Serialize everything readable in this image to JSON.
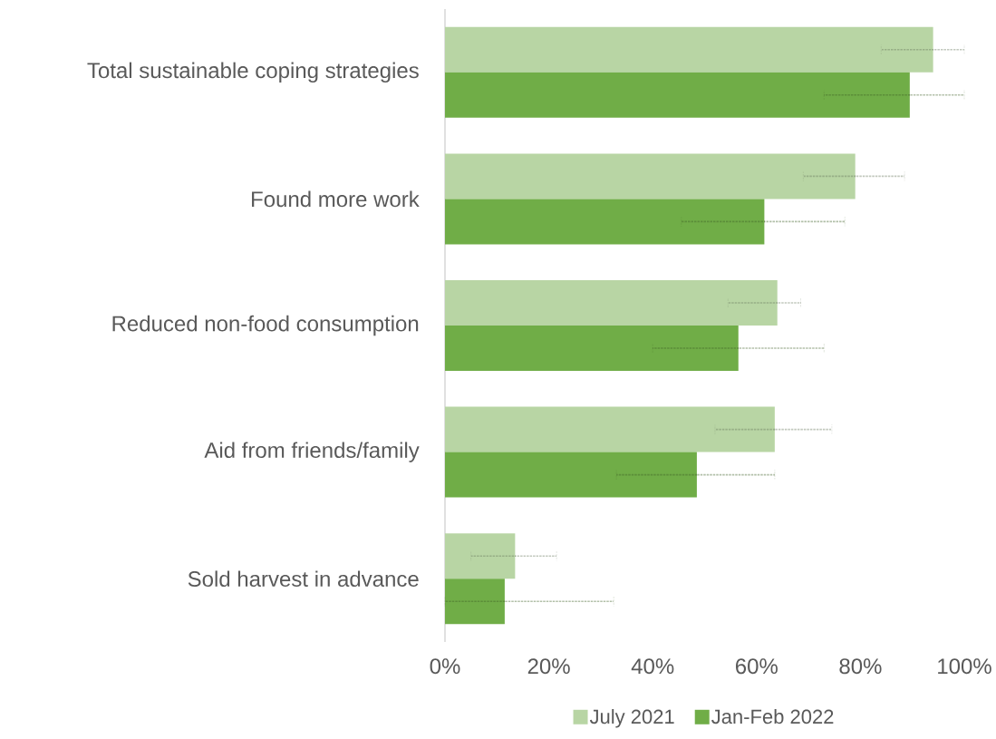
{
  "chart_data": {
    "type": "bar",
    "orientation": "horizontal",
    "categories": [
      "Total sustainable coping strategies",
      "Found more work",
      "Reduced non-food consumption",
      "Aid from friends/family",
      "Sold harvest in advance"
    ],
    "series": [
      {
        "name": "July 2021",
        "color": "#b8d5a4",
        "values": [
          94,
          79,
          64,
          63.5,
          13.5
        ],
        "errors": [
          [
            84,
            100
          ],
          [
            69,
            88.5
          ],
          [
            54.5,
            68.5
          ],
          [
            52,
            74.5
          ],
          [
            5,
            21.5
          ]
        ]
      },
      {
        "name": "Jan-Feb 2022",
        "color": "#70ad47",
        "values": [
          89.5,
          61.5,
          56.5,
          48.5,
          11.5
        ],
        "errors": [
          [
            73,
            100
          ],
          [
            45.5,
            77
          ],
          [
            40,
            73
          ],
          [
            33,
            63.5
          ],
          [
            0,
            32.5
          ]
        ]
      }
    ],
    "xlim": [
      0,
      100
    ],
    "xticks": [
      {
        "value": 0,
        "label": "0%"
      },
      {
        "value": 20,
        "label": "20%"
      },
      {
        "value": 40,
        "label": "40%"
      },
      {
        "value": 60,
        "label": "60%"
      },
      {
        "value": 80,
        "label": "80%"
      },
      {
        "value": 100,
        "label": "100%"
      }
    ],
    "legend": "bottom",
    "grid": false
  }
}
